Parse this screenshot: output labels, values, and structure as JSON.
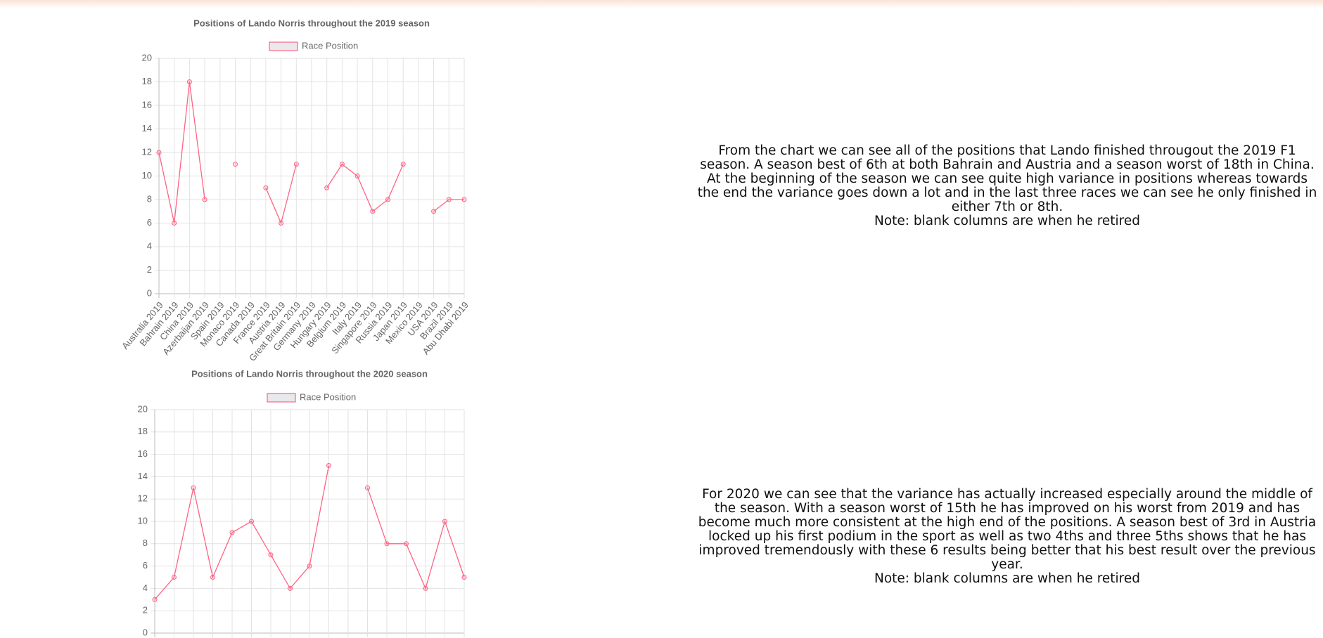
{
  "chart_data": [
    {
      "type": "line",
      "title": "Positions of Lando Norris throughout the 2019 season",
      "categories": [
        "Australia 2019",
        "Bahrain 2019",
        "China 2019",
        "Azerbaijan 2019",
        "Spain 2019",
        "Monaco 2019",
        "Canada 2019",
        "France 2019",
        "Austria 2019",
        "Great Britain 2019",
        "Germany 2019",
        "Hungary 2019",
        "Belgium 2019",
        "Italy 2019",
        "Singapore 2019",
        "Russia 2019",
        "Japan 2019",
        "Mexico 2019",
        "USA 2019",
        "Brazil 2019",
        "Abu Dhabi 2019"
      ],
      "series": [
        {
          "name": "Race Position",
          "color": "#ff6384",
          "values": [
            12,
            6,
            18,
            8,
            null,
            11,
            null,
            9,
            6,
            11,
            null,
            9,
            11,
            10,
            7,
            8,
            11,
            null,
            7,
            8,
            8
          ]
        }
      ],
      "ylim": [
        0,
        20
      ],
      "yticks": [
        0,
        2,
        4,
        6,
        8,
        10,
        12,
        14,
        16,
        18,
        20
      ],
      "grid": true,
      "legend": "top"
    },
    {
      "type": "line",
      "title": "Positions of Lando Norris throughout the 2020 season",
      "categories": [
        null,
        null,
        null,
        null,
        null,
        null,
        null,
        null,
        null,
        null,
        null,
        null,
        null,
        null,
        null,
        null,
        null
      ],
      "series": [
        {
          "name": "Race Position",
          "color": "#ff6384",
          "values": [
            3,
            5,
            13,
            5,
            9,
            10,
            7,
            4,
            6,
            15,
            null,
            13,
            8,
            8,
            4,
            10,
            5
          ]
        }
      ],
      "ylim": [
        0,
        20
      ],
      "yticks": [
        0,
        2,
        4,
        6,
        8,
        10,
        12,
        14,
        16,
        18,
        20
      ],
      "grid": true,
      "legend": "top"
    }
  ],
  "text": [
    {
      "body": "From the chart we can see all of the positions that Lando finished througout the 2019 F1 season. A season best of 6th at both Bahrain and Austria and a season worst of 18th in China. At the beginning of the season we can see quite high variance in positions whereas towards the end the variance goes down a lot and in the last three races we can see he only finished in either 7th or 8th.",
      "note": "Note: blank columns are when he retired"
    },
    {
      "body": "For 2020 we can see that the variance has actually increased especially around the middle of the season. With a season worst of 15th he has improved on his worst from 2019 and has become much more consistent at the high end of the positions. A season best of 3rd in Austria locked up his first podium in the sport as well as two 4ths and three 5ths shows that he has improved tremendously with these 6 results being better that his best result over the previous year.",
      "note": "Note: blank columns are when he retired"
    }
  ]
}
